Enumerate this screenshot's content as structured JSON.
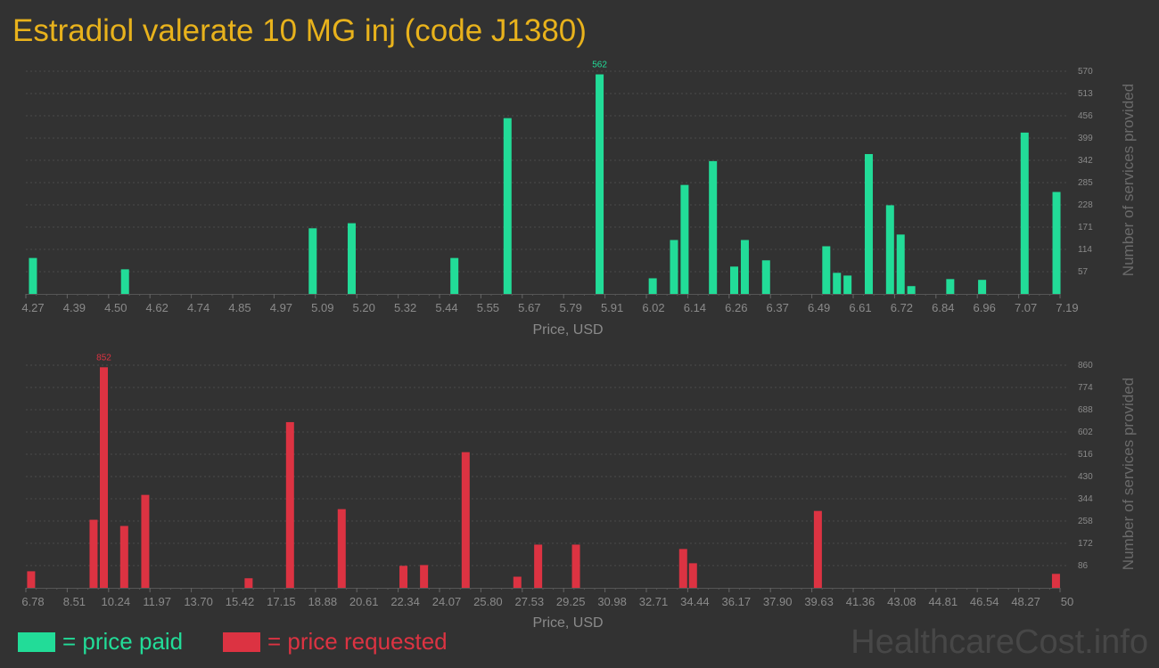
{
  "title": "Estradiol valerate 10 MG inj (code J1380)",
  "legend": {
    "paid_label": "= price paid",
    "requested_label": "= price requested"
  },
  "brand": "HealthcareCost.info",
  "colors": {
    "paid": "#22dc98",
    "requested": "#dc3342",
    "title": "#e8b21c",
    "background": "#323232"
  },
  "chart_data": [
    {
      "type": "bar",
      "name": "price paid",
      "xlabel": "Price, USD",
      "ylabel": "Number of services provided",
      "xlim": [
        4.27,
        7.19
      ],
      "ylim": [
        0,
        570
      ],
      "xticks": [
        "4.27",
        "4.39",
        "4.50",
        "4.62",
        "4.74",
        "4.85",
        "4.97",
        "5.09",
        "5.20",
        "5.32",
        "5.44",
        "5.55",
        "5.67",
        "5.79",
        "5.91",
        "6.02",
        "6.14",
        "6.26",
        "6.37",
        "6.49",
        "6.61",
        "6.72",
        "6.84",
        "6.96",
        "7.07",
        "7.19"
      ],
      "yticks": [
        "57",
        "114",
        "171",
        "228",
        "285",
        "342",
        "399",
        "456",
        "513",
        "570"
      ],
      "peak_label": "562",
      "x": [
        4.29,
        4.55,
        5.08,
        5.19,
        5.48,
        5.63,
        5.89,
        6.04,
        6.1,
        6.13,
        6.21,
        6.27,
        6.3,
        6.36,
        6.53,
        6.56,
        6.59,
        6.65,
        6.71,
        6.74,
        6.77,
        6.88,
        6.97,
        7.09,
        7.18
      ],
      "values": [
        92,
        63,
        168,
        181,
        92,
        450,
        562,
        40,
        138,
        279,
        340,
        70,
        138,
        86,
        122,
        54,
        47,
        358,
        227,
        152,
        20,
        38,
        36,
        413,
        261
      ]
    },
    {
      "type": "bar",
      "name": "price requested",
      "xlabel": "Price, USD",
      "ylabel": "Number of services provided",
      "xlim": [
        6.78,
        50
      ],
      "ylim": [
        0,
        860
      ],
      "xticks": [
        "6.78",
        "8.51",
        "10.24",
        "11.97",
        "13.70",
        "15.42",
        "17.15",
        "18.88",
        "20.61",
        "22.34",
        "24.07",
        "25.80",
        "27.53",
        "29.25",
        "30.98",
        "32.71",
        "34.44",
        "36.17",
        "37.90",
        "39.63",
        "41.36",
        "43.08",
        "44.81",
        "46.54",
        "48.27",
        "50"
      ],
      "yticks": [
        "86",
        "172",
        "258",
        "344",
        "430",
        "516",
        "602",
        "688",
        "774",
        "860"
      ],
      "peak_label": "852",
      "x": [
        7.0,
        9.61,
        10.04,
        10.89,
        11.77,
        16.09,
        17.82,
        19.98,
        22.56,
        23.42,
        25.16,
        27.32,
        28.19,
        29.77,
        34.25,
        34.66,
        39.88,
        49.83
      ],
      "values": [
        64,
        263,
        852,
        239,
        359,
        37,
        640,
        304,
        85,
        88,
        524,
        43,
        167,
        167,
        150,
        95,
        297,
        54
      ]
    }
  ]
}
